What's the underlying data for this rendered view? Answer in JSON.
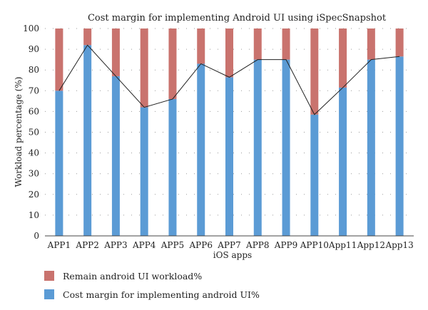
{
  "chart_data": {
    "type": "bar",
    "stacked": true,
    "title": "Cost margin for implementing Android UI using iSpecSnapshot",
    "xlabel": "iOS apps",
    "ylabel": "Workload percentage (%)",
    "ylim": [
      0,
      100
    ],
    "yticks": [
      0,
      10,
      20,
      30,
      40,
      50,
      60,
      70,
      80,
      90,
      100
    ],
    "grid": "dotted-horizontal",
    "legend_position": "bottom-left",
    "categories": [
      "APP1",
      "APP2",
      "APP3",
      "APP4",
      "APP5",
      "APP6",
      "APP7",
      "APP8",
      "APP9",
      "APP10",
      "App11",
      "App12",
      "App13"
    ],
    "series": [
      {
        "name": "Cost margin for implementing android UI%",
        "color": "#5b9bd5",
        "values": [
          70,
          92,
          77,
          62,
          66,
          83,
          76.5,
          85,
          85,
          58.5,
          71.5,
          85,
          86.5
        ]
      },
      {
        "name": "Remain android UI workload%",
        "color": "#c9736e",
        "values": [
          30,
          8,
          23,
          38,
          34,
          17,
          23.5,
          15,
          15,
          41.5,
          28.5,
          15,
          13.5
        ]
      }
    ],
    "trend_line": {
      "series": "Cost margin for implementing android UI%",
      "color": "#222222"
    }
  },
  "legend": {
    "items": [
      {
        "label": "Remain android UI workload%",
        "color": "#c9736e"
      },
      {
        "label": "Cost margin for implementing android UI%",
        "color": "#5b9bd5"
      }
    ]
  }
}
